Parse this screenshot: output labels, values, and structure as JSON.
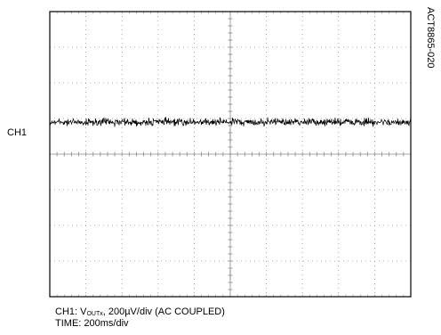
{
  "chart_data": {
    "type": "line",
    "title": "",
    "channel_label": "CH1",
    "figure_id": "ACT8865-020",
    "caption": {
      "line1_prefix": "CH1: V",
      "line1_subscript": "OUTx",
      "line1_suffix": ", 200µV/div (AC COUPLED)",
      "line2": "TIME: 200ms/div"
    },
    "grid": {
      "divisions_x": 10,
      "divisions_y": 8,
      "visible": true
    },
    "series": [
      {
        "trace": "output voltage ripple (flat noise band)",
        "level_div_from_top": 3.1,
        "noise_band_div": 0.3,
        "color": "#000000"
      }
    ],
    "marker": "ground reference marker at 3.5 div"
  }
}
